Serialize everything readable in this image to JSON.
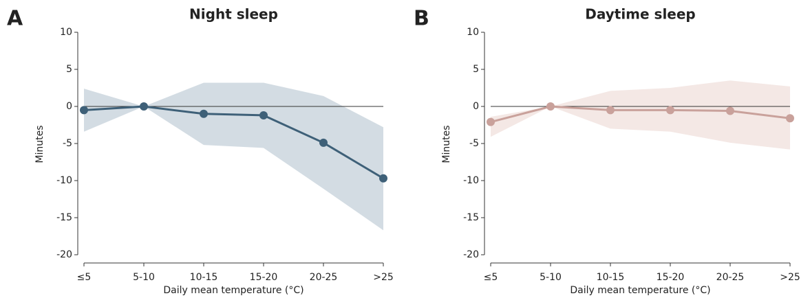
{
  "chart_data": [
    {
      "type": "line",
      "panel_label": "A",
      "title": "Night sleep",
      "ylabel": "Minutes",
      "xlabel": "Daily mean temperature (°C)",
      "categories": [
        "≤5",
        "5-10",
        "10-15",
        "15-20",
        "20-25",
        ">25"
      ],
      "values": [
        -0.5,
        0,
        -1.0,
        -1.2,
        -4.9,
        -9.7
      ],
      "upper": [
        2.4,
        0,
        3.2,
        3.2,
        1.4,
        -2.8
      ],
      "lower": [
        -3.4,
        0,
        -5.2,
        -5.6,
        -11.1,
        -16.7
      ],
      "color": "#3e6078",
      "band_color": "#d3dce3",
      "hline": 0,
      "ylim": [
        -20,
        10
      ],
      "yticks": [
        -20,
        -15,
        -10,
        -5,
        0,
        5,
        10
      ]
    },
    {
      "type": "line",
      "panel_label": "B",
      "title": "Daytime sleep",
      "ylabel": "Minutes",
      "xlabel": "Daily mean temperature (°C)",
      "categories": [
        "≤5",
        "5-10",
        "10-15",
        "15-20",
        "20-25",
        ">25"
      ],
      "values": [
        -2.1,
        0,
        -0.5,
        -0.5,
        -0.6,
        -1.6
      ],
      "upper": [
        -1.4,
        0,
        2.1,
        2.5,
        3.5,
        2.7
      ],
      "lower": [
        -4.1,
        0,
        -3.0,
        -3.4,
        -4.9,
        -5.8
      ],
      "color": "#c9a19b",
      "band_color": "#f4e8e5",
      "hline": 0,
      "ylim": [
        -20,
        10
      ],
      "yticks": [
        -20,
        -15,
        -10,
        -5,
        0,
        5,
        10
      ]
    }
  ]
}
